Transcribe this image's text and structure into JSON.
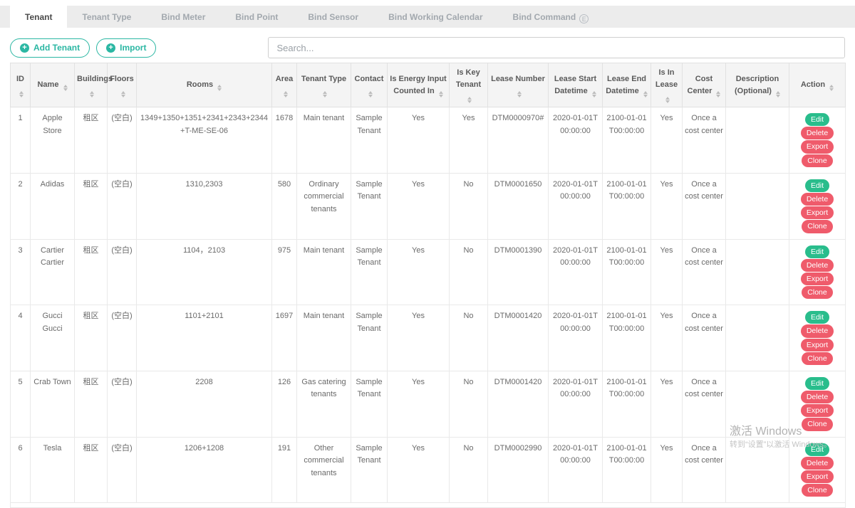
{
  "colors": {
    "accent": "#2bb7a3",
    "success": "#29bd8c",
    "danger": "#ef5b6b"
  },
  "tabs": [
    {
      "label": "Tenant",
      "active": true
    },
    {
      "label": "Tenant Type"
    },
    {
      "label": "Bind Meter"
    },
    {
      "label": "Bind Point"
    },
    {
      "label": "Bind Sensor"
    },
    {
      "label": "Bind Working Calendar"
    },
    {
      "label": "Bind Command",
      "badge": "E"
    }
  ],
  "toolbar": {
    "add_tenant_label": "Add Tenant",
    "import_label": "Import",
    "search_placeholder": "Search..."
  },
  "table": {
    "columns": [
      {
        "key": "id",
        "label": "ID",
        "sortable": true
      },
      {
        "key": "name",
        "label": "Name",
        "sortable": true
      },
      {
        "key": "buildings",
        "label": "Buildings",
        "sortable": true
      },
      {
        "key": "floors",
        "label": "Floors",
        "sortable": true
      },
      {
        "key": "rooms",
        "label": "Rooms",
        "sortable": true
      },
      {
        "key": "area",
        "label": "Area",
        "sortable": true
      },
      {
        "key": "tenant_type",
        "label": "Tenant Type",
        "sortable": true
      },
      {
        "key": "contact",
        "label": "Contact",
        "sortable": true
      },
      {
        "key": "is_energy_input_counted_in",
        "label": "Is Energy Input Counted In",
        "sortable": true
      },
      {
        "key": "is_key_tenant",
        "label": "Is Key Tenant",
        "sortable": true
      },
      {
        "key": "lease_number",
        "label": "Lease Number",
        "sortable": true
      },
      {
        "key": "lease_start_datetime",
        "label": "Lease Start Datetime",
        "sortable": true
      },
      {
        "key": "lease_end_datetime",
        "label": "Lease End Datetime",
        "sortable": true
      },
      {
        "key": "is_in_lease",
        "label": "Is In Lease",
        "sortable": true
      },
      {
        "key": "cost_center",
        "label": "Cost Center",
        "sortable": true
      },
      {
        "key": "description",
        "label": "Description (Optional)",
        "sortable": true
      },
      {
        "key": "actions",
        "label": "Action",
        "sortable": true
      }
    ],
    "action_buttons": [
      {
        "label": "Edit",
        "variant": "success"
      },
      {
        "label": "Delete",
        "variant": "danger"
      },
      {
        "label": "Export",
        "variant": "danger"
      },
      {
        "label": "Clone",
        "variant": "danger"
      }
    ],
    "rows": [
      {
        "id": "1",
        "name": "Apple Store",
        "buildings": "租区",
        "floors": "(空白)",
        "rooms": "1349+1350+1351+2341+2343+2344+T-ME-SE-06",
        "area": "1678",
        "tenant_type": "Main tenant",
        "contact": "Sample Tenant",
        "is_energy_input_counted_in": "Yes",
        "is_key_tenant": "Yes",
        "lease_number": "DTM0000970#",
        "lease_start_datetime": "2020-01-01T00:00:00",
        "lease_end_datetime": "2100-01-01T00:00:00",
        "is_in_lease": "Yes",
        "cost_center": "Once a cost center",
        "description": ""
      },
      {
        "id": "2",
        "name": "Adidas",
        "buildings": "租区",
        "floors": "(空白)",
        "rooms": "1310,2303",
        "area": "580",
        "tenant_type": "Ordinary commercial tenants",
        "contact": "Sample Tenant",
        "is_energy_input_counted_in": "Yes",
        "is_key_tenant": "No",
        "lease_number": "DTM0001650",
        "lease_start_datetime": "2020-01-01T00:00:00",
        "lease_end_datetime": "2100-01-01T00:00:00",
        "is_in_lease": "Yes",
        "cost_center": "Once a cost center",
        "description": ""
      },
      {
        "id": "3",
        "name": "Cartier Cartier",
        "buildings": "租区",
        "floors": "(空白)",
        "rooms": "1104，2103",
        "area": "975",
        "tenant_type": "Main tenant",
        "contact": "Sample Tenant",
        "is_energy_input_counted_in": "Yes",
        "is_key_tenant": "No",
        "lease_number": "DTM0001390",
        "lease_start_datetime": "2020-01-01T00:00:00",
        "lease_end_datetime": "2100-01-01T00:00:00",
        "is_in_lease": "Yes",
        "cost_center": "Once a cost center",
        "description": ""
      },
      {
        "id": "4",
        "name": "Gucci Gucci",
        "buildings": "租区",
        "floors": "(空白)",
        "rooms": "1101+2101",
        "area": "1697",
        "tenant_type": "Main tenant",
        "contact": "Sample Tenant",
        "is_energy_input_counted_in": "Yes",
        "is_key_tenant": "No",
        "lease_number": "DTM0001420",
        "lease_start_datetime": "2020-01-01T00:00:00",
        "lease_end_datetime": "2100-01-01T00:00:00",
        "is_in_lease": "Yes",
        "cost_center": "Once a cost center",
        "description": ""
      },
      {
        "id": "5",
        "name": "Crab Town",
        "buildings": "租区",
        "floors": "(空白)",
        "rooms": "2208",
        "area": "126",
        "tenant_type": "Gas catering tenants",
        "contact": "Sample Tenant",
        "is_energy_input_counted_in": "Yes",
        "is_key_tenant": "No",
        "lease_number": "DTM0001420",
        "lease_start_datetime": "2020-01-01T00:00:00",
        "lease_end_datetime": "2100-01-01T00:00:00",
        "is_in_lease": "Yes",
        "cost_center": "Once a cost center",
        "description": ""
      },
      {
        "id": "6",
        "name": "Tesla",
        "buildings": "租区",
        "floors": "(空白)",
        "rooms": "1206+1208",
        "area": "191",
        "tenant_type": "Other commercial tenants",
        "contact": "Sample Tenant",
        "is_energy_input_counted_in": "Yes",
        "is_key_tenant": "No",
        "lease_number": "DTM0002990",
        "lease_start_datetime": "2020-01-01T00:00:00",
        "lease_end_datetime": "2100-01-01T00:00:00",
        "is_in_lease": "Yes",
        "cost_center": "Once a cost center",
        "description": ""
      }
    ]
  },
  "watermark": {
    "line1": "激活 Windows",
    "line2": "转到“设置”以激活 Windows。"
  }
}
